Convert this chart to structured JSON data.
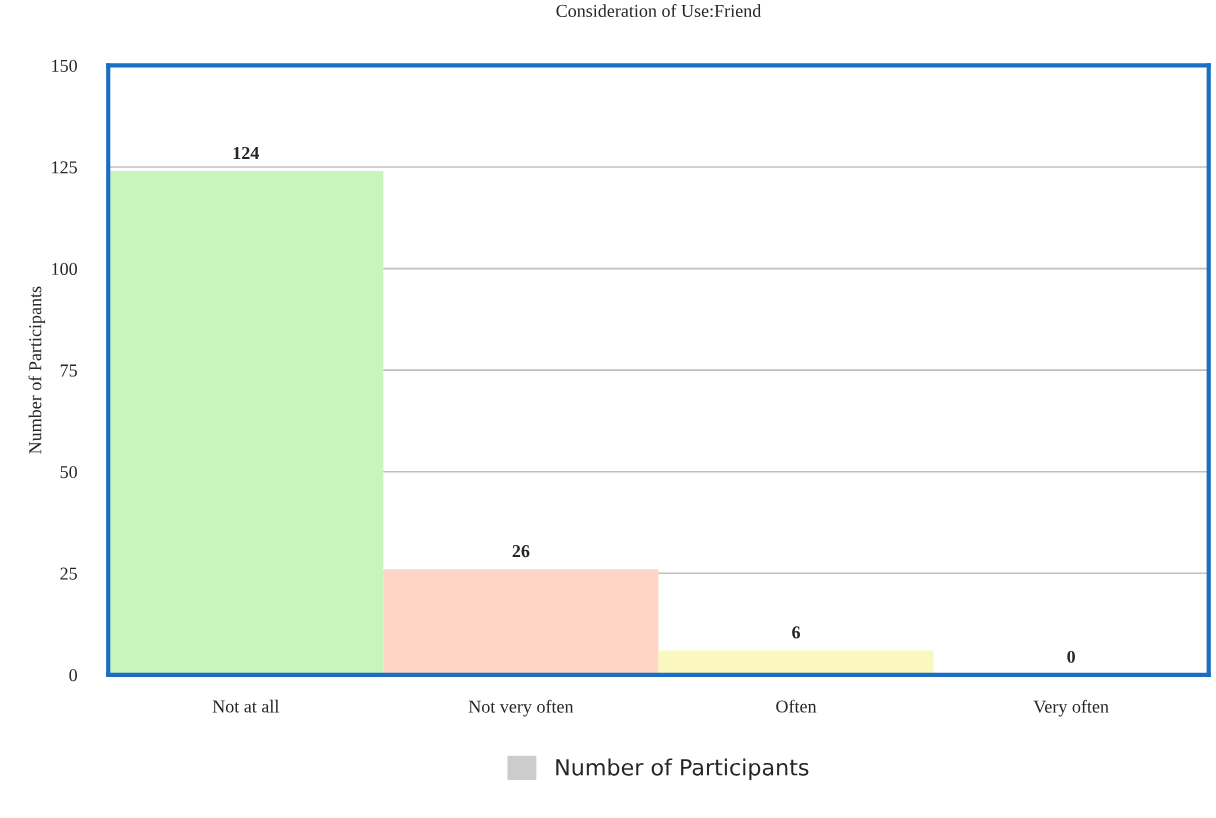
{
  "chart_data": {
    "type": "bar",
    "title": "Consideration of Use:Friend",
    "ylabel": "Number of Participants",
    "categories": [
      "Not at all",
      "Not very often",
      "Often",
      "Very often"
    ],
    "series": [
      {
        "name": "Number of Participants",
        "color": "#cccccc",
        "colors": [
          "#c8f5bc",
          "#fed5c6",
          "#faf8bf",
          "#d6eaf8"
        ],
        "values": [
          124,
          26,
          6,
          0
        ]
      }
    ],
    "ylim": [
      0,
      150
    ],
    "yticks": [
      0,
      25,
      50,
      75,
      100,
      125,
      150
    ],
    "grid": "y",
    "legend": "bottom",
    "data_labels": true
  }
}
